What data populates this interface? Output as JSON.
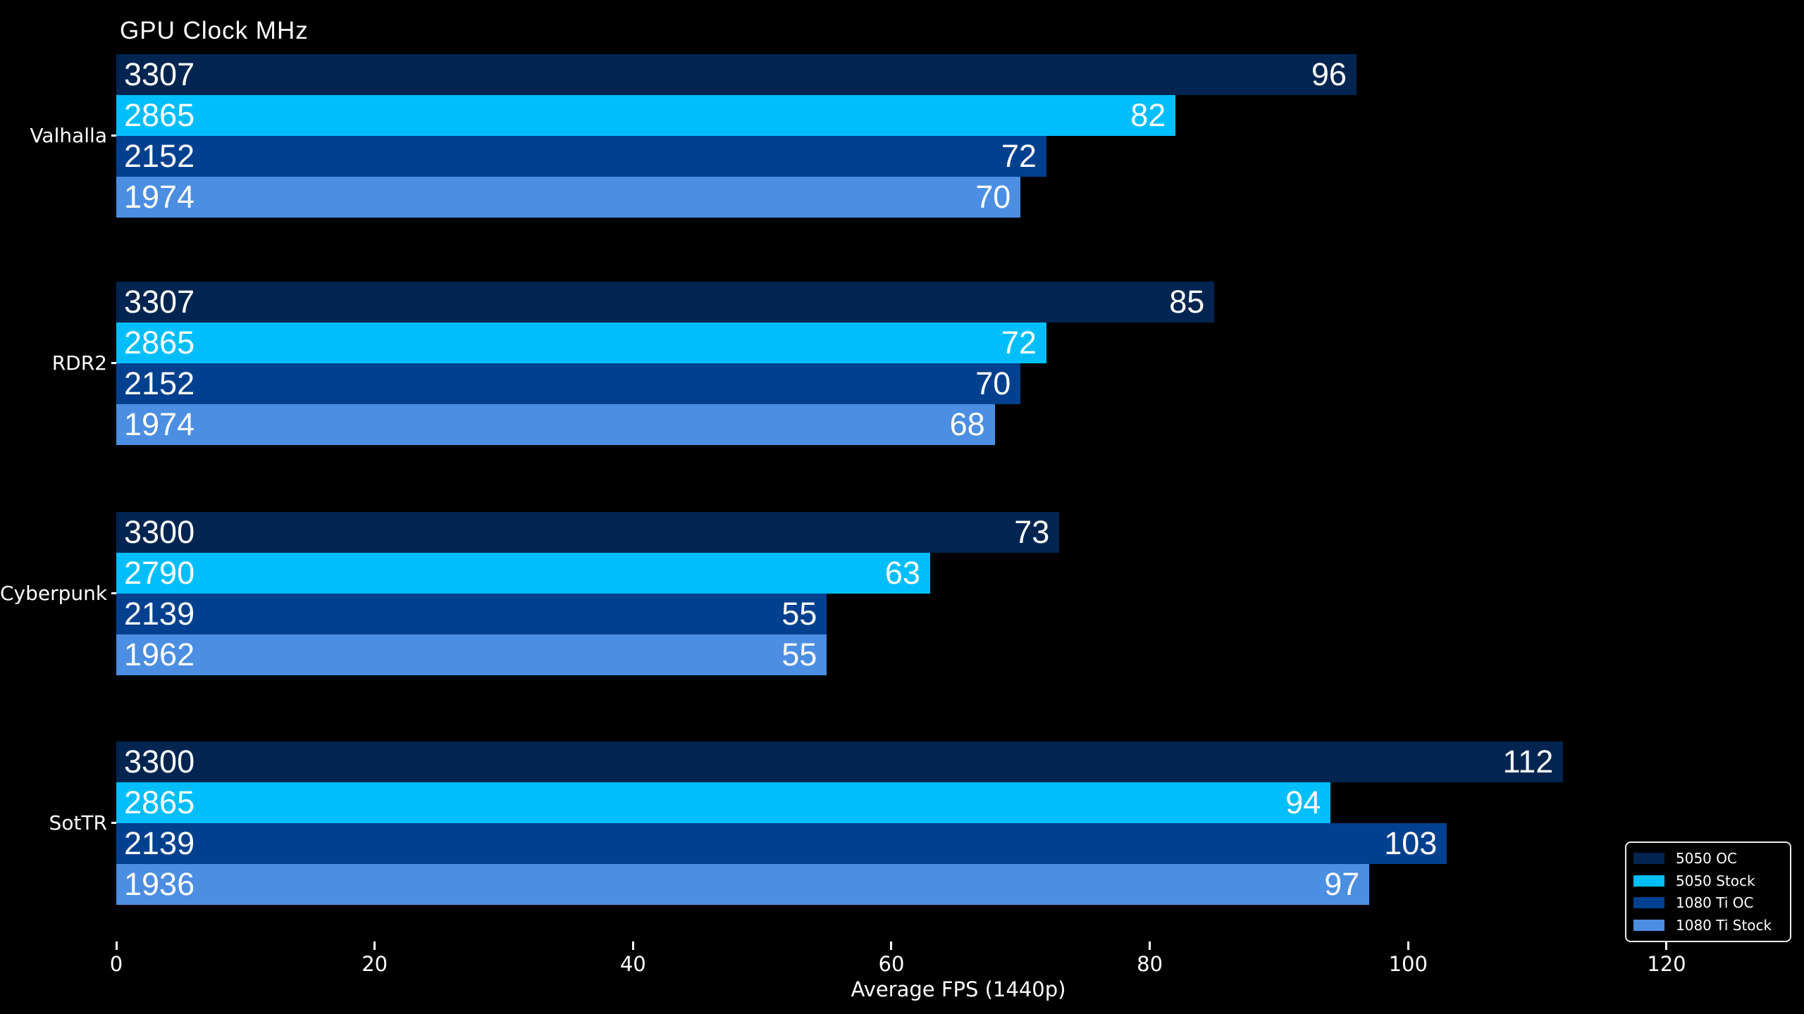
{
  "chart_data": {
    "type": "bar",
    "orientation": "horizontal",
    "title": "GPU Clock MHz",
    "xlabel": "Average FPS (1440p)",
    "xlim": [
      0,
      130
    ],
    "xticks": [
      0,
      20,
      40,
      60,
      80,
      100,
      120
    ],
    "grid": false,
    "background": "#000000",
    "text_color": "#ffffff",
    "categories": [
      "Valhalla",
      "RDR2",
      "Cyberpunk",
      "SotTR"
    ],
    "series": [
      {
        "name": "5050 OC",
        "color": "#012550",
        "values": [
          96,
          85,
          73,
          112
        ],
        "clock_mhz": [
          "3307",
          "3307",
          "3300",
          "3300"
        ]
      },
      {
        "name": "5050 Stock",
        "color": "#00befc",
        "values": [
          82,
          72,
          63,
          94
        ],
        "clock_mhz": [
          "2865",
          "2865",
          "2790",
          "2865"
        ]
      },
      {
        "name": "1080 Ti OC",
        "color": "#01408e",
        "values": [
          72,
          70,
          55,
          103
        ],
        "clock_mhz": [
          "2152",
          "2152",
          "2139",
          "2139"
        ]
      },
      {
        "name": "1080 Ti Stock",
        "color": "#4b8ee2",
        "values": [
          70,
          68,
          55,
          97
        ],
        "clock_mhz": [
          "1974",
          "1974",
          "1962",
          "1936"
        ]
      }
    ],
    "legend": {
      "position": "lower-right",
      "entries": [
        "5050 OC",
        "5050 Stock",
        "1080 Ti OC",
        "1080 Ti Stock"
      ]
    }
  }
}
